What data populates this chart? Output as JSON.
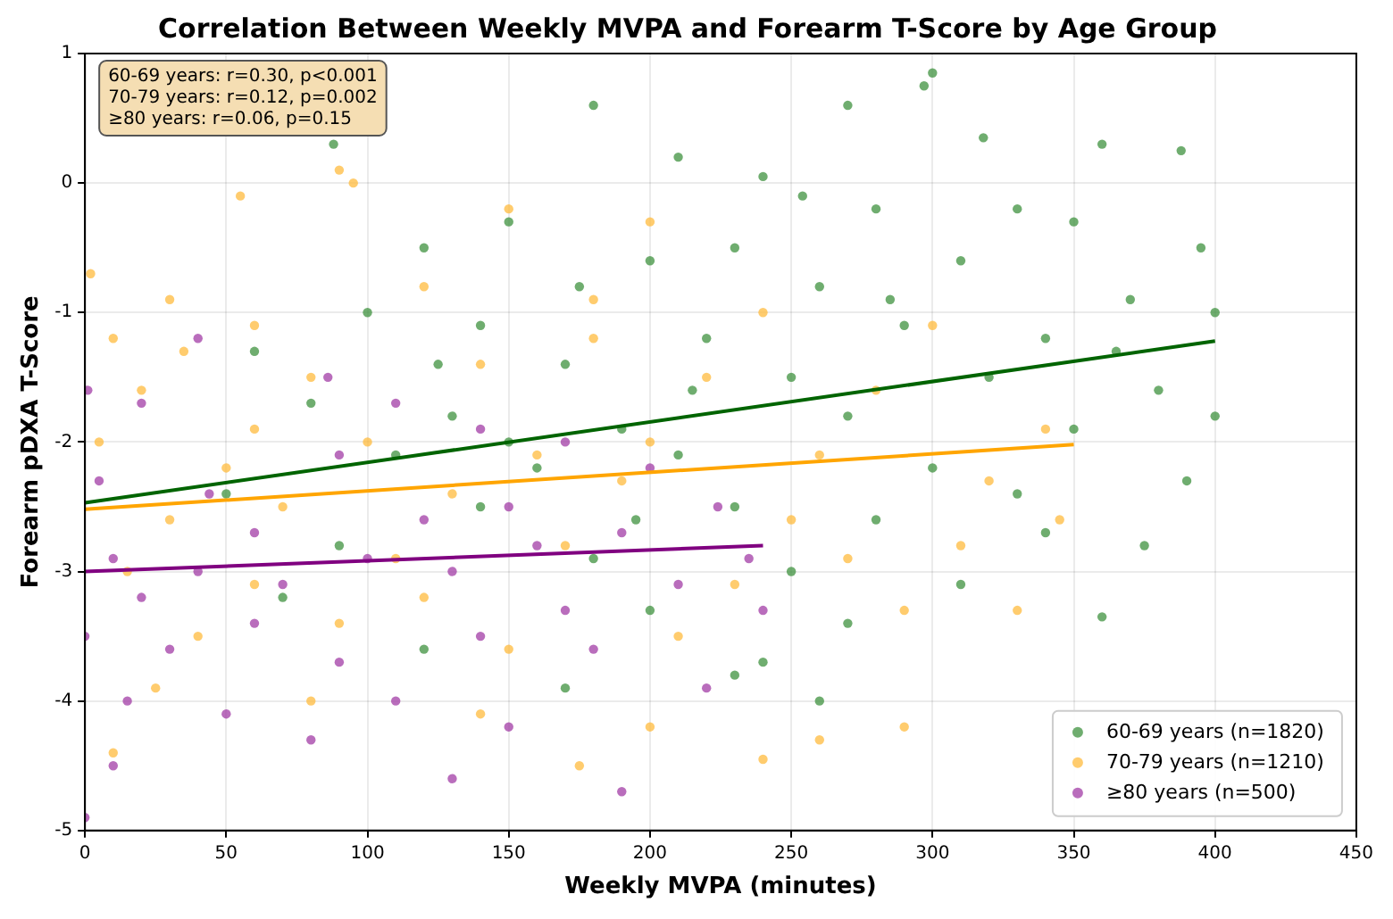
{
  "chart_data": {
    "type": "scatter",
    "title": "Correlation Between Weekly MVPA and Forearm T-Score by Age Group",
    "xlabel": "Weekly MVPA (minutes)",
    "ylabel": "Forearm pDXA T-Score",
    "xlim": [
      0,
      450
    ],
    "xticks": [
      0,
      50,
      100,
      150,
      200,
      250,
      300,
      350,
      400,
      450
    ],
    "ylim": [
      -5,
      1
    ],
    "yticks": [
      -5,
      -4,
      -3,
      -2,
      -1,
      0,
      1
    ],
    "grid": true,
    "legend": "bottom right",
    "marker": "circle",
    "annotations": [
      "60-69 years: r=0.30, p<0.001",
      "70-79 years: r=0.12, p=0.002",
      "≥80 years: r=0.06, p=0.15"
    ],
    "series": [
      {
        "name": "60-69 years (n=1820)",
        "color": "#3f913f",
        "x": [
          88,
          300,
          297,
          180,
          270,
          318,
          388,
          360,
          210,
          240,
          254,
          330,
          150,
          120,
          280,
          350,
          395,
          200,
          230,
          175,
          260,
          310,
          370,
          100,
          140,
          220,
          290,
          340,
          400,
          60,
          170,
          250,
          320,
          380,
          400,
          80,
          130,
          190,
          270,
          350,
          110,
          160,
          210,
          300,
          390,
          50,
          140,
          230,
          280,
          340,
          90,
          180,
          250,
          310,
          70,
          200,
          270,
          360,
          120,
          240,
          170,
          260,
          230,
          150,
          330,
          365,
          215,
          285,
          125,
          195,
          375
        ],
        "values": [
          0.3,
          0.85,
          0.75,
          0.6,
          0.6,
          0.35,
          0.25,
          0.3,
          0.2,
          0.05,
          -0.1,
          -0.2,
          -0.3,
          -0.5,
          -0.2,
          -0.3,
          -0.5,
          -0.6,
          -0.5,
          -0.8,
          -0.8,
          -0.6,
          -0.9,
          -1.0,
          -1.1,
          -1.2,
          -1.1,
          -1.2,
          -1.0,
          -1.3,
          -1.4,
          -1.5,
          -1.5,
          -1.6,
          -1.8,
          -1.7,
          -1.8,
          -1.9,
          -1.8,
          -1.9,
          -2.1,
          -2.2,
          -2.1,
          -2.2,
          -2.3,
          -2.4,
          -2.5,
          -2.5,
          -2.6,
          -2.7,
          -2.8,
          -2.9,
          -3.0,
          -3.1,
          -3.2,
          -3.3,
          -3.4,
          -3.35,
          -3.6,
          -3.7,
          -3.9,
          -4.0,
          -3.8,
          -2.0,
          -2.4,
          -1.3,
          -1.6,
          -0.9,
          -1.4,
          -2.6,
          -2.8
        ]
      },
      {
        "name": "70-79 years (n=1210)",
        "color": "#ffbb3d",
        "x": [
          2,
          90,
          55,
          150,
          200,
          95,
          30,
          10,
          60,
          120,
          180,
          240,
          300,
          20,
          80,
          140,
          220,
          280,
          340,
          5,
          50,
          100,
          160,
          200,
          260,
          320,
          30,
          70,
          130,
          190,
          250,
          310,
          15,
          60,
          110,
          170,
          230,
          290,
          40,
          90,
          150,
          210,
          330,
          25,
          80,
          140,
          200,
          260,
          175,
          10,
          290,
          240,
          120,
          180,
          345,
          60,
          270,
          35
        ],
        "values": [
          -0.7,
          0.1,
          -0.1,
          -0.2,
          -0.3,
          0.0,
          -0.9,
          -1.2,
          -1.1,
          -0.8,
          -0.9,
          -1.0,
          -1.1,
          -1.6,
          -1.5,
          -1.4,
          -1.5,
          -1.6,
          -1.9,
          -2.0,
          -2.2,
          -2.0,
          -2.1,
          -2.0,
          -2.1,
          -2.3,
          -2.6,
          -2.5,
          -2.4,
          -2.3,
          -2.6,
          -2.8,
          -3.0,
          -3.1,
          -2.9,
          -2.8,
          -3.1,
          -3.3,
          -3.5,
          -3.4,
          -3.6,
          -3.5,
          -3.3,
          -3.9,
          -4.0,
          -4.1,
          -4.2,
          -4.3,
          -4.5,
          -4.4,
          -4.2,
          -4.45,
          -3.2,
          -1.2,
          -2.6,
          -1.9,
          -2.9,
          -1.3
        ]
      },
      {
        "name": "≥80 years (n=500)",
        "color": "#a23ca6",
        "x": [
          1,
          20,
          40,
          86,
          110,
          140,
          170,
          200,
          224,
          5,
          44,
          90,
          120,
          150,
          190,
          10,
          40,
          70,
          100,
          130,
          160,
          210,
          240,
          0,
          30,
          60,
          90,
          140,
          180,
          220,
          15,
          50,
          80,
          110,
          150,
          190,
          10,
          130,
          0,
          170,
          60,
          235,
          20
        ],
        "values": [
          -1.6,
          -1.7,
          -1.2,
          -1.5,
          -1.7,
          -1.9,
          -2.0,
          -2.2,
          -2.5,
          -2.3,
          -2.4,
          -2.1,
          -2.6,
          -2.5,
          -2.7,
          -2.9,
          -3.0,
          -3.1,
          -2.9,
          -3.0,
          -2.8,
          -3.1,
          -3.3,
          -3.5,
          -3.6,
          -3.4,
          -3.7,
          -3.5,
          -3.6,
          -3.9,
          -4.0,
          -4.1,
          -4.3,
          -4.0,
          -4.2,
          -4.7,
          -4.5,
          -4.6,
          -4.9,
          -3.3,
          -2.7,
          -2.9,
          -3.2
        ]
      },
      {
        "type": "line",
        "marker": "none",
        "color": "#006400",
        "x": [
          0,
          400
        ],
        "values": [
          -2.47,
          -1.22
        ]
      },
      {
        "type": "line",
        "marker": "none",
        "color": "#ffa500",
        "x": [
          0,
          350
        ],
        "values": [
          -2.52,
          -2.02
        ]
      },
      {
        "type": "line",
        "marker": "none",
        "color": "#800080",
        "x": [
          0,
          240
        ],
        "values": [
          -3.0,
          -2.8
        ]
      }
    ]
  }
}
